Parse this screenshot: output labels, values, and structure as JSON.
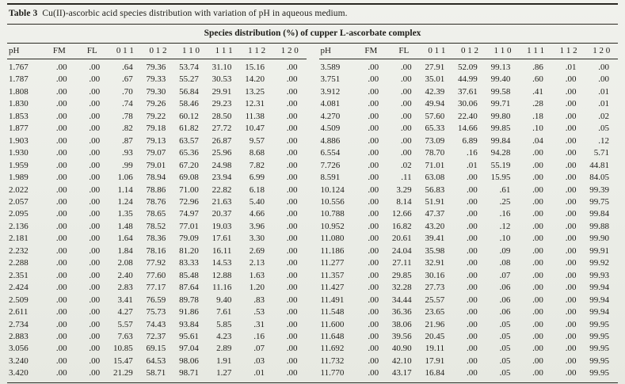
{
  "caption": {
    "label": "Table 3",
    "text": "Cu(II)-ascorbic acid species distribution with variation of pH in aqueous medium."
  },
  "table": {
    "span_header": "Species distribution (%) of cupper L-ascorbate complex",
    "columns": [
      "pH",
      "FM",
      "FL",
      "0 1 1",
      "0 1 2",
      "1 1 0",
      "1 1 1",
      "1 1 2",
      "1 2 0"
    ],
    "left_rows": [
      [
        "1.767",
        ".00",
        ".00",
        ".64",
        "79.36",
        "53.74",
        "31.10",
        "15.16",
        ".00"
      ],
      [
        "1.787",
        ".00",
        ".00",
        ".67",
        "79.33",
        "55.27",
        "30.53",
        "14.20",
        ".00"
      ],
      [
        "1.808",
        ".00",
        ".00",
        ".70",
        "79.30",
        "56.84",
        "29.91",
        "13.25",
        ".00"
      ],
      [
        "1.830",
        ".00",
        ".00",
        ".74",
        "79.26",
        "58.46",
        "29.23",
        "12.31",
        ".00"
      ],
      [
        "1.853",
        ".00",
        ".00",
        ".78",
        "79.22",
        "60.12",
        "28.50",
        "11.38",
        ".00"
      ],
      [
        "1.877",
        ".00",
        ".00",
        ".82",
        "79.18",
        "61.82",
        "27.72",
        "10.47",
        ".00"
      ],
      [
        "1.903",
        ".00",
        ".00",
        ".87",
        "79.13",
        "63.57",
        "26.87",
        "9.57",
        ".00"
      ],
      [
        "1.930",
        ".00",
        ".00",
        ".93",
        "79.07",
        "65.36",
        "25.96",
        "8.68",
        ".00"
      ],
      [
        "1.959",
        ".00",
        ".00",
        ".99",
        "79.01",
        "67.20",
        "24.98",
        "7.82",
        ".00"
      ],
      [
        "1.989",
        ".00",
        ".00",
        "1.06",
        "78.94",
        "69.08",
        "23.94",
        "6.99",
        ".00"
      ],
      [
        "2.022",
        ".00",
        ".00",
        "1.14",
        "78.86",
        "71.00",
        "22.82",
        "6.18",
        ".00"
      ],
      [
        "2.057",
        ".00",
        ".00",
        "1.24",
        "78.76",
        "72.96",
        "21.63",
        "5.40",
        ".00"
      ],
      [
        "2.095",
        ".00",
        ".00",
        "1.35",
        "78.65",
        "74.97",
        "20.37",
        "4.66",
        ".00"
      ],
      [
        "2.136",
        ".00",
        ".00",
        "1.48",
        "78.52",
        "77.01",
        "19.03",
        "3.96",
        ".00"
      ],
      [
        "2.181",
        ".00",
        ".00",
        "1.64",
        "78.36",
        "79.09",
        "17.61",
        "3.30",
        ".00"
      ],
      [
        "2.232",
        ".00",
        ".00",
        "1.84",
        "78.16",
        "81.20",
        "16.11",
        "2.69",
        ".00"
      ],
      [
        "2.288",
        ".00",
        ".00",
        "2.08",
        "77.92",
        "83.33",
        "14.53",
        "2.13",
        ".00"
      ],
      [
        "2.351",
        ".00",
        ".00",
        "2.40",
        "77.60",
        "85.48",
        "12.88",
        "1.63",
        ".00"
      ],
      [
        "2.424",
        ".00",
        ".00",
        "2.83",
        "77.17",
        "87.64",
        "11.16",
        "1.20",
        ".00"
      ],
      [
        "2.509",
        ".00",
        ".00",
        "3.41",
        "76.59",
        "89.78",
        "9.40",
        ".83",
        ".00"
      ],
      [
        "2.611",
        ".00",
        ".00",
        "4.27",
        "75.73",
        "91.86",
        "7.61",
        ".53",
        ".00"
      ],
      [
        "2.734",
        ".00",
        ".00",
        "5.57",
        "74.43",
        "93.84",
        "5.85",
        ".31",
        ".00"
      ],
      [
        "2.883",
        ".00",
        ".00",
        "7.63",
        "72.37",
        "95.61",
        "4.23",
        ".16",
        ".00"
      ],
      [
        "3.056",
        ".00",
        ".00",
        "10.85",
        "69.15",
        "97.04",
        "2.89",
        ".07",
        ".00"
      ],
      [
        "3.240",
        ".00",
        ".00",
        "15.47",
        "64.53",
        "98.06",
        "1.91",
        ".03",
        ".00"
      ],
      [
        "3.420",
        ".00",
        ".00",
        "21.29",
        "58.71",
        "98.71",
        "1.27",
        ".01",
        ".00"
      ]
    ],
    "right_rows": [
      [
        "3.589",
        ".00",
        ".00",
        "27.91",
        "52.09",
        "99.13",
        ".86",
        ".01",
        ".00"
      ],
      [
        "3.751",
        ".00",
        ".00",
        "35.01",
        "44.99",
        "99.40",
        ".60",
        ".00",
        ".00"
      ],
      [
        "3.912",
        ".00",
        ".00",
        "42.39",
        "37.61",
        "99.58",
        ".41",
        ".00",
        ".01"
      ],
      [
        "4.081",
        ".00",
        ".00",
        "49.94",
        "30.06",
        "99.71",
        ".28",
        ".00",
        ".01"
      ],
      [
        "4.270",
        ".00",
        ".00",
        "57.60",
        "22.40",
        "99.80",
        ".18",
        ".00",
        ".02"
      ],
      [
        "4.509",
        ".00",
        ".00",
        "65.33",
        "14.66",
        "99.85",
        ".10",
        ".00",
        ".05"
      ],
      [
        "4.886",
        ".00",
        ".00",
        "73.09",
        "6.89",
        "99.84",
        ".04",
        ".00",
        ".12"
      ],
      [
        "6.554",
        ".00",
        ".00",
        "78.70",
        ".16",
        "94.28",
        ".00",
        ".00",
        "5.71"
      ],
      [
        "7.726",
        ".00",
        ".02",
        "71.01",
        ".01",
        "55.19",
        ".00",
        ".00",
        "44.81"
      ],
      [
        "8.591",
        ".00",
        ".11",
        "63.08",
        ".00",
        "15.95",
        ".00",
        ".00",
        "84.05"
      ],
      [
        "10.124",
        ".00",
        "3.29",
        "56.83",
        ".00",
        ".61",
        ".00",
        ".00",
        "99.39"
      ],
      [
        "10.556",
        ".00",
        "8.14",
        "51.91",
        ".00",
        ".25",
        ".00",
        ".00",
        "99.75"
      ],
      [
        "10.788",
        ".00",
        "12.66",
        "47.37",
        ".00",
        ".16",
        ".00",
        ".00",
        "99.84"
      ],
      [
        "10.952",
        ".00",
        "16.82",
        "43.20",
        ".00",
        ".12",
        ".00",
        ".00",
        "99.88"
      ],
      [
        "11.080",
        ".00",
        "20.61",
        "39.41",
        ".00",
        ".10",
        ".00",
        ".00",
        "99.90"
      ],
      [
        "11.186",
        ".00",
        "24.04",
        "35.98",
        ".00",
        ".09",
        ".00",
        ".00",
        "99.91"
      ],
      [
        "11.277",
        ".00",
        "27.11",
        "32.91",
        ".00",
        ".08",
        ".00",
        ".00",
        "99.92"
      ],
      [
        "11.357",
        ".00",
        "29.85",
        "30.16",
        ".00",
        ".07",
        ".00",
        ".00",
        "99.93"
      ],
      [
        "11.427",
        ".00",
        "32.28",
        "27.73",
        ".00",
        ".06",
        ".00",
        ".00",
        "99.94"
      ],
      [
        "11.491",
        ".00",
        "34.44",
        "25.57",
        ".00",
        ".06",
        ".00",
        ".00",
        "99.94"
      ],
      [
        "11.548",
        ".00",
        "36.36",
        "23.65",
        ".00",
        ".06",
        ".00",
        ".00",
        "99.94"
      ],
      [
        "11.600",
        ".00",
        "38.06",
        "21.96",
        ".00",
        ".05",
        ".00",
        ".00",
        "99.95"
      ],
      [
        "11.648",
        ".00",
        "39.56",
        "20.45",
        ".00",
        ".05",
        ".00",
        ".00",
        "99.95"
      ],
      [
        "11.692",
        ".00",
        "40.90",
        "19.11",
        ".00",
        ".05",
        ".00",
        ".00",
        "99.95"
      ],
      [
        "11.732",
        ".00",
        "42.10",
        "17.91",
        ".00",
        ".05",
        ".00",
        ".00",
        "99.95"
      ],
      [
        "11.770",
        ".00",
        "43.17",
        "16.84",
        ".00",
        ".05",
        ".00",
        ".00",
        "99.95"
      ]
    ]
  },
  "colors": {
    "paper": "#edeee9",
    "rule": "#2a2922",
    "text": "#1d1c18"
  }
}
